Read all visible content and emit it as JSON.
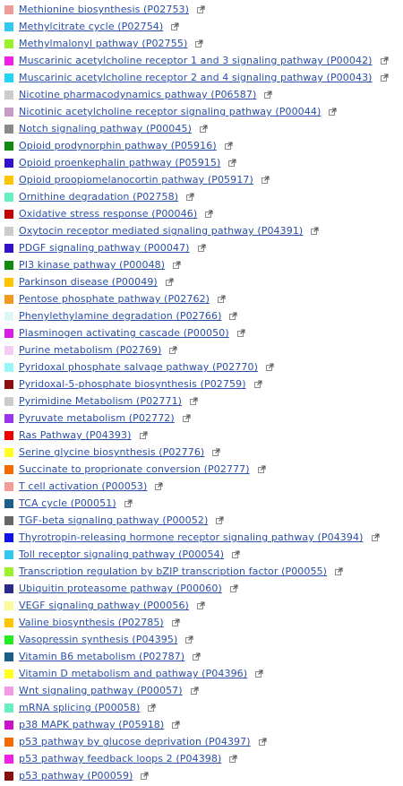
{
  "pathways": [
    {
      "label": "Methionine biosynthesis (P02753)",
      "color": "#f09a9a"
    },
    {
      "label": "Methylcitrate cycle (P02754)",
      "color": "#33c8f0"
    },
    {
      "label": "Methylmalonyl pathway (P02755)",
      "color": "#99f22a"
    },
    {
      "label": "Muscarinic acetylcholine receptor 1 and 3 signaling pathway (P00042)",
      "color": "#f01ee6"
    },
    {
      "label": "Muscarinic acetylcholine receptor 2 and 4 signaling pathway (P00043)",
      "color": "#22d5f5"
    },
    {
      "label": "Nicotine pharmacodynamics pathway (P06587)",
      "color": "#cccccc"
    },
    {
      "label": "Nicotinic acetylcholine receptor signaling pathway (P00044)",
      "color": "#c89ac8"
    },
    {
      "label": "Notch signaling pathway (P00045)",
      "color": "#8a8a8a"
    },
    {
      "label": "Opioid prodynorphin pathway (P05916)",
      "color": "#118a11"
    },
    {
      "label": "Opioid proenkephalin pathway (P05915)",
      "color": "#3311cc"
    },
    {
      "label": "Opioid proopiomelanocortin pathway (P05917)",
      "color": "#ffc400"
    },
    {
      "label": "Ornithine degradation (P02758)",
      "color": "#66f0c0"
    },
    {
      "label": "Oxidative stress response (P00046)",
      "color": "#c40000"
    },
    {
      "label": "Oxytocin receptor mediated signaling pathway (P04391)",
      "color": "#cccccc"
    },
    {
      "label": "PDGF signaling pathway (P00047)",
      "color": "#3311cc"
    },
    {
      "label": "PI3 kinase pathway (P00048)",
      "color": "#118a11"
    },
    {
      "label": "Parkinson disease (P00049)",
      "color": "#ffc400"
    },
    {
      "label": "Pentose phosphate pathway (P02762)",
      "color": "#f29a1e"
    },
    {
      "label": "Phenylethylamine degradation (P02766)",
      "color": "#ddf7f7"
    },
    {
      "label": "Plasminogen activating cascade (P00050)",
      "color": "#d81ee6"
    },
    {
      "label": "Purine metabolism (P02769)",
      "color": "#f2ccf2"
    },
    {
      "label": "Pyridoxal phosphate salvage pathway (P02770)",
      "color": "#99f7f7"
    },
    {
      "label": "Pyridoxal-5-phosphate biosynthesis (P02759)",
      "color": "#8c0f0f"
    },
    {
      "label": "Pyrimidine Metabolism (P02771)",
      "color": "#cccccc"
    },
    {
      "label": "Pyruvate metabolism (P02772)",
      "color": "#9933ee"
    },
    {
      "label": "Ras Pathway (P04393)",
      "color": "#ee0000"
    },
    {
      "label": "Serine glycine biosynthesis (P02776)",
      "color": "#ffff22"
    },
    {
      "label": "Succinate to proprionate conversion (P02777)",
      "color": "#f26a00"
    },
    {
      "label": "T cell activation (P00053)",
      "color": "#f59a9a"
    },
    {
      "label": "TCA cycle (P00051)",
      "color": "#1a5f8a"
    },
    {
      "label": "TGF-beta signaling pathway (P00052)",
      "color": "#666666"
    },
    {
      "label": "Thyrotropin-releasing hormone receptor signaling pathway (P04394)",
      "color": "#1111ee"
    },
    {
      "label": "Toll receptor signaling pathway (P00054)",
      "color": "#33c8f0"
    },
    {
      "label": "Transcription regulation by bZIP transcription factor (P00055)",
      "color": "#99f22a"
    },
    {
      "label": "Ubiquitin proteasome pathway (P00060)",
      "color": "#2a2a8c"
    },
    {
      "label": "VEGF signaling pathway (P00056)",
      "color": "#fafa99"
    },
    {
      "label": "Valine biosynthesis (P02785)",
      "color": "#ffc400"
    },
    {
      "label": "Vasopressin synthesis (P04395)",
      "color": "#22ee22"
    },
    {
      "label": "Vitamin B6 metabolism (P02787)",
      "color": "#1a5f8a"
    },
    {
      "label": "Vitamin D metabolism and pathway (P04396)",
      "color": "#ffff22"
    },
    {
      "label": "Wnt signaling pathway (P00057)",
      "color": "#f29ae6"
    },
    {
      "label": "mRNA splicing (P00058)",
      "color": "#66f0c0"
    },
    {
      "label": "p38 MAPK pathway (P05918)",
      "color": "#cc11cc"
    },
    {
      "label": "p53 pathway by glucose deprivation (P04397)",
      "color": "#f26a00"
    },
    {
      "label": "p53 pathway feedback loops 2 (P04398)",
      "color": "#f01ee6"
    },
    {
      "label": "p53 pathway (P00059)",
      "color": "#8c0f0f"
    }
  ],
  "icons": {
    "external": "external-link-icon"
  }
}
